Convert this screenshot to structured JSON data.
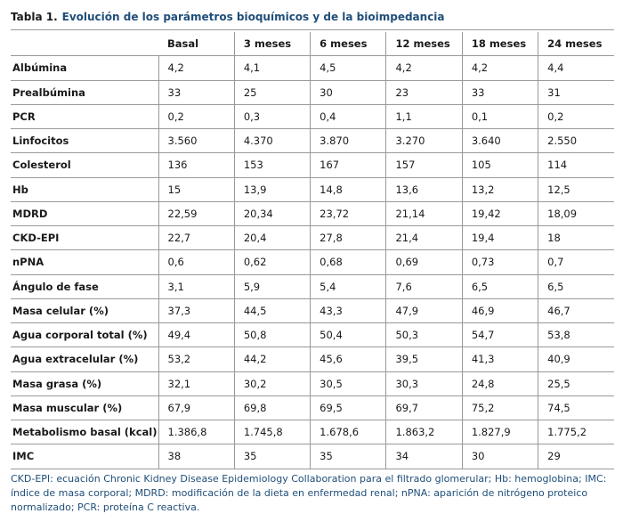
{
  "title": {
    "label": "Tabla 1.",
    "text": "Evolución de los parámetros bioquímicos y de la bioimpedancia"
  },
  "table": {
    "header": [
      "Basal",
      "3 meses",
      "6 meses",
      "12 meses",
      "18 meses",
      "24 meses"
    ],
    "rows": [
      [
        "Albúmina",
        "4,2",
        "4,1",
        "4,5",
        "4,2",
        "4,2",
        "4,4"
      ],
      [
        "Prealbúmina",
        "33",
        "25",
        "30",
        "23",
        "33",
        "31"
      ],
      [
        "PCR",
        "0,2",
        "0,3",
        "0,4",
        "1,1",
        "0,1",
        "0,2"
      ],
      [
        "Linfocitos",
        "3.560",
        "4.370",
        "3.870",
        "3.270",
        "3.640",
        "2.550"
      ],
      [
        "Colesterol",
        "136",
        "153",
        "167",
        "157",
        "105",
        "114"
      ],
      [
        "Hb",
        "15",
        "13,9",
        "14,8",
        "13,6",
        "13,2",
        "12,5"
      ],
      [
        "MDRD",
        "22,59",
        "20,34",
        "23,72",
        "21,14",
        "19,42",
        "18,09"
      ],
      [
        "CKD-EPI",
        "22,7",
        "20,4",
        "27,8",
        "21,4",
        "19,4",
        "18"
      ],
      [
        "nPNA",
        "0,6",
        "0,62",
        "0,68",
        "0,69",
        "0,73",
        "0,7"
      ],
      [
        "Ángulo de fase",
        "3,1",
        "5,9",
        "5,4",
        "7,6",
        "6,5",
        "6,5"
      ],
      [
        "Masa celular (%)",
        "37,3",
        "44,5",
        "43,3",
        "47,9",
        "46,9",
        "46,7"
      ],
      [
        "Agua corporal total (%)",
        "49,4",
        "50,8",
        "50,4",
        "50,3",
        "54,7",
        "53,8"
      ],
      [
        "Agua extracelular (%)",
        "53,2",
        "44,2",
        "45,6",
        "39,5",
        "41,3",
        "40,9"
      ],
      [
        "Masa grasa (%)",
        "32,1",
        "30,2",
        "30,5",
        "30,3",
        "24,8",
        "25,5"
      ],
      [
        "Masa muscular (%)",
        "67,9",
        "69,8",
        "69,5",
        "69,7",
        "75,2",
        "74,5"
      ],
      [
        "Metabolismo basal (kcal)",
        "1.386,8",
        "1.745,8",
        "1.678,6",
        "1.863,2",
        "1.827,9",
        "1.775,2"
      ],
      [
        "IMC",
        "38",
        "35",
        "35",
        "34",
        "30",
        "29"
      ]
    ]
  },
  "footnote": "CKD-EPI: ecuación Chronic Kidney Disease Epidemiology Collaboration para el filtrado glomerular; Hb: hemoglobina; IMC: índice de masa corporal; MDRD: modificación de la dieta en enfermedad renal; nPNA: aparición de nitrógeno proteico normalizado; PCR: proteína C reactiva."
}
